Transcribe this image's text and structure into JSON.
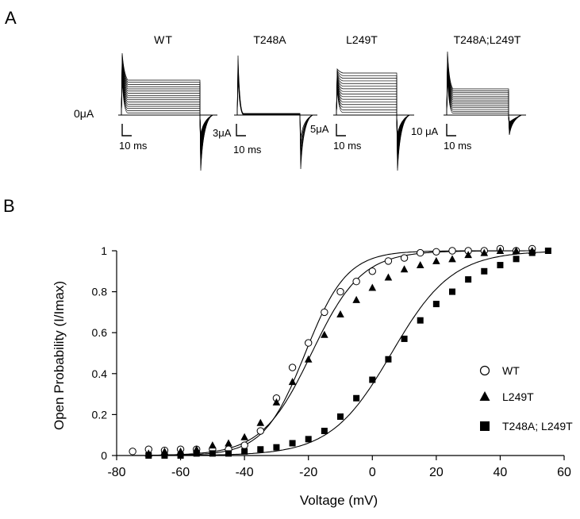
{
  "panel_a": {
    "letter": "A",
    "zero_label": "0μA",
    "traces": [
      {
        "title": "WT",
        "scale_current": "",
        "scale_time": "10 ms"
      },
      {
        "title": "T248A",
        "scale_current": "3μA",
        "scale_time": "10 ms"
      },
      {
        "title": "L249T",
        "scale_current": "5μA",
        "scale_time": "10 ms"
      },
      {
        "title": "T248A;L249T",
        "scale_current": "10 μA",
        "scale_time": "10 ms"
      }
    ]
  },
  "panel_b": {
    "letter": "B"
  },
  "chart_data": {
    "type": "scatter",
    "title": "",
    "xlabel": "Voltage (mV)",
    "ylabel": "Open Probability (I/Imax)",
    "xlim": [
      -80,
      60
    ],
    "ylim": [
      0,
      1
    ],
    "xticks": [
      -80,
      -60,
      -40,
      -20,
      0,
      20,
      40,
      60
    ],
    "yticks": [
      0,
      0.2,
      0.4,
      0.6,
      0.8,
      1
    ],
    "xtick_labels": [
      "-80",
      "-60",
      "-40",
      "-20",
      "0",
      "20",
      "40",
      "60"
    ],
    "ytick_labels": [
      "0",
      "0.2",
      "0.4",
      "0.6",
      "0.8",
      "1"
    ],
    "legend_position": "right",
    "series": [
      {
        "name": "WT",
        "marker": "circle-open",
        "x": [
          -75,
          -70,
          -65,
          -60,
          -55,
          -50,
          -45,
          -40,
          -35,
          -30,
          -25,
          -20,
          -15,
          -10,
          -5,
          0,
          5,
          10,
          15,
          20,
          25,
          30,
          35,
          40,
          45,
          50
        ],
        "y": [
          0.02,
          0.03,
          0.025,
          0.03,
          0.03,
          0.03,
          0.03,
          0.05,
          0.12,
          0.28,
          0.43,
          0.55,
          0.7,
          0.8,
          0.85,
          0.9,
          0.95,
          0.965,
          0.99,
          0.995,
          1.0,
          1.0,
          1.0,
          1.01,
          1.0,
          1.01
        ],
        "fit": {
          "v_half": -21,
          "slope": 6.5
        }
      },
      {
        "name": "L249T",
        "marker": "triangle-filled",
        "x": [
          -70,
          -65,
          -60,
          -55,
          -50,
          -45,
          -40,
          -35,
          -30,
          -25,
          -20,
          -15,
          -10,
          -5,
          0,
          5,
          10,
          15,
          20,
          25,
          30,
          35,
          40,
          45,
          50
        ],
        "y": [
          0.01,
          0.02,
          0.02,
          0.03,
          0.05,
          0.06,
          0.09,
          0.16,
          0.26,
          0.36,
          0.47,
          0.59,
          0.69,
          0.76,
          0.82,
          0.87,
          0.91,
          0.93,
          0.95,
          0.96,
          0.98,
          0.99,
          1.0,
          1.0,
          1.0
        ],
        "fit": {
          "v_half": -19,
          "slope": 7.8
        }
      },
      {
        "name": "T248A; L249T",
        "marker": "square-filled",
        "x": [
          -70,
          -65,
          -60,
          -55,
          -50,
          -45,
          -40,
          -35,
          -30,
          -25,
          -20,
          -15,
          -10,
          -5,
          0,
          5,
          10,
          15,
          20,
          25,
          30,
          35,
          40,
          45,
          50,
          55
        ],
        "y": [
          0.0,
          0.0,
          0.0,
          0.01,
          0.01,
          0.01,
          0.02,
          0.03,
          0.04,
          0.06,
          0.08,
          0.12,
          0.19,
          0.28,
          0.37,
          0.47,
          0.57,
          0.66,
          0.74,
          0.8,
          0.86,
          0.9,
          0.93,
          0.96,
          0.99,
          1.0
        ],
        "fit": {
          "v_half": 6,
          "slope": 9.5
        }
      }
    ]
  }
}
